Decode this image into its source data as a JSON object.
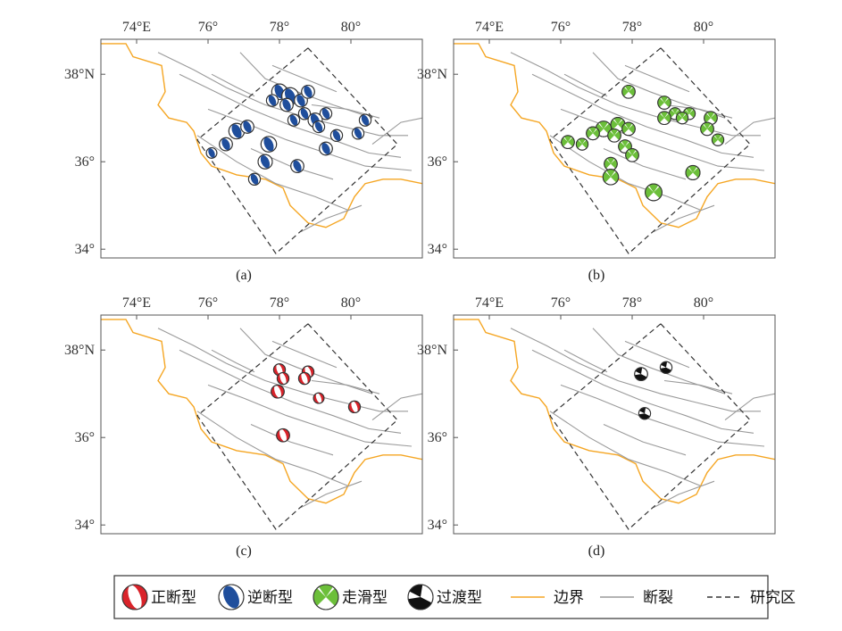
{
  "colors": {
    "normal": "#d9232a",
    "reverse": "#1f4e9c",
    "strike_slip": "#6cbf3a",
    "transition": "#111111",
    "boundary": "#f5a623",
    "fault": "#9a9a9a",
    "study_area": "#333333"
  },
  "axes": {
    "x_ticks": [
      "74°E",
      "76°",
      "78°",
      "80°"
    ],
    "y_ticks": [
      "38°N",
      "36°",
      "34°"
    ]
  },
  "panels": [
    {
      "caption": "(a)",
      "mechanism": "reverse",
      "points": [
        {
          "lon": 78.0,
          "lat": 37.6,
          "mag": 1.1
        },
        {
          "lon": 78.3,
          "lat": 37.5,
          "mag": 1.2
        },
        {
          "lon": 78.6,
          "lat": 37.4,
          "mag": 0.9
        },
        {
          "lon": 77.8,
          "lat": 37.4,
          "mag": 0.8
        },
        {
          "lon": 78.8,
          "lat": 37.6,
          "mag": 0.9
        },
        {
          "lon": 78.2,
          "lat": 37.3,
          "mag": 0.9
        },
        {
          "lon": 78.7,
          "lat": 37.1,
          "mag": 0.8
        },
        {
          "lon": 79.3,
          "lat": 37.1,
          "mag": 0.8
        },
        {
          "lon": 79.0,
          "lat": 36.95,
          "mag": 1.0
        },
        {
          "lon": 78.4,
          "lat": 36.95,
          "mag": 0.8
        },
        {
          "lon": 79.1,
          "lat": 36.8,
          "mag": 0.8
        },
        {
          "lon": 80.4,
          "lat": 36.95,
          "mag": 0.8
        },
        {
          "lon": 80.2,
          "lat": 36.65,
          "mag": 0.8
        },
        {
          "lon": 79.6,
          "lat": 36.6,
          "mag": 0.8
        },
        {
          "lon": 79.3,
          "lat": 36.3,
          "mag": 0.9
        },
        {
          "lon": 76.8,
          "lat": 36.7,
          "mag": 1.1
        },
        {
          "lon": 77.1,
          "lat": 36.8,
          "mag": 0.9
        },
        {
          "lon": 77.7,
          "lat": 36.4,
          "mag": 1.1
        },
        {
          "lon": 76.5,
          "lat": 36.4,
          "mag": 0.9
        },
        {
          "lon": 76.1,
          "lat": 36.2,
          "mag": 0.7
        },
        {
          "lon": 77.6,
          "lat": 36.0,
          "mag": 1.0
        },
        {
          "lon": 78.5,
          "lat": 35.9,
          "mag": 0.9
        },
        {
          "lon": 77.3,
          "lat": 35.6,
          "mag": 0.8
        }
      ]
    },
    {
      "caption": "(b)",
      "mechanism": "strike_slip",
      "points": [
        {
          "lon": 77.9,
          "lat": 37.6,
          "mag": 0.9
        },
        {
          "lon": 78.9,
          "lat": 37.35,
          "mag": 0.9
        },
        {
          "lon": 79.2,
          "lat": 37.1,
          "mag": 0.8
        },
        {
          "lon": 79.6,
          "lat": 37.1,
          "mag": 0.8
        },
        {
          "lon": 78.9,
          "lat": 37.0,
          "mag": 0.9
        },
        {
          "lon": 79.4,
          "lat": 37.0,
          "mag": 0.8
        },
        {
          "lon": 80.2,
          "lat": 37.0,
          "mag": 0.9
        },
        {
          "lon": 77.6,
          "lat": 36.85,
          "mag": 1.0
        },
        {
          "lon": 77.2,
          "lat": 36.75,
          "mag": 1.1
        },
        {
          "lon": 77.9,
          "lat": 36.75,
          "mag": 0.9
        },
        {
          "lon": 80.1,
          "lat": 36.75,
          "mag": 0.9
        },
        {
          "lon": 76.9,
          "lat": 36.65,
          "mag": 0.9
        },
        {
          "lon": 77.5,
          "lat": 36.6,
          "mag": 0.9
        },
        {
          "lon": 80.4,
          "lat": 36.5,
          "mag": 0.8
        },
        {
          "lon": 76.2,
          "lat": 36.45,
          "mag": 0.9
        },
        {
          "lon": 76.6,
          "lat": 36.4,
          "mag": 0.8
        },
        {
          "lon": 77.8,
          "lat": 36.35,
          "mag": 0.9
        },
        {
          "lon": 78.0,
          "lat": 36.15,
          "mag": 0.9
        },
        {
          "lon": 77.4,
          "lat": 35.95,
          "mag": 0.9
        },
        {
          "lon": 79.7,
          "lat": 35.75,
          "mag": 1.0
        },
        {
          "lon": 77.4,
          "lat": 35.65,
          "mag": 1.1
        },
        {
          "lon": 78.6,
          "lat": 35.3,
          "mag": 1.2
        }
      ]
    },
    {
      "caption": "(c)",
      "mechanism": "normal",
      "points": [
        {
          "lon": 78.0,
          "lat": 37.55,
          "mag": 0.8
        },
        {
          "lon": 78.1,
          "lat": 37.35,
          "mag": 0.8
        },
        {
          "lon": 78.8,
          "lat": 37.5,
          "mag": 0.8
        },
        {
          "lon": 78.7,
          "lat": 37.35,
          "mag": 0.8
        },
        {
          "lon": 77.95,
          "lat": 37.05,
          "mag": 0.9
        },
        {
          "lon": 79.1,
          "lat": 36.9,
          "mag": 0.7
        },
        {
          "lon": 80.1,
          "lat": 36.7,
          "mag": 0.8
        },
        {
          "lon": 78.1,
          "lat": 36.05,
          "mag": 0.9
        }
      ]
    },
    {
      "caption": "(d)",
      "mechanism": "transition",
      "points": [
        {
          "lon": 78.25,
          "lat": 37.45,
          "mag": 0.9
        },
        {
          "lon": 78.95,
          "lat": 37.6,
          "mag": 0.8
        },
        {
          "lon": 78.35,
          "lat": 36.55,
          "mag": 0.8
        }
      ]
    }
  ],
  "legend": {
    "items": [
      {
        "type": "normal",
        "label": "正断型"
      },
      {
        "type": "reverse",
        "label": "逆断型"
      },
      {
        "type": "strike_slip",
        "label": "走滑型"
      },
      {
        "type": "transition",
        "label": "过渡型"
      },
      {
        "type": "boundary",
        "label": "边界"
      },
      {
        "type": "fault",
        "label": "断裂"
      },
      {
        "type": "study_area",
        "label": "研究区"
      }
    ]
  }
}
